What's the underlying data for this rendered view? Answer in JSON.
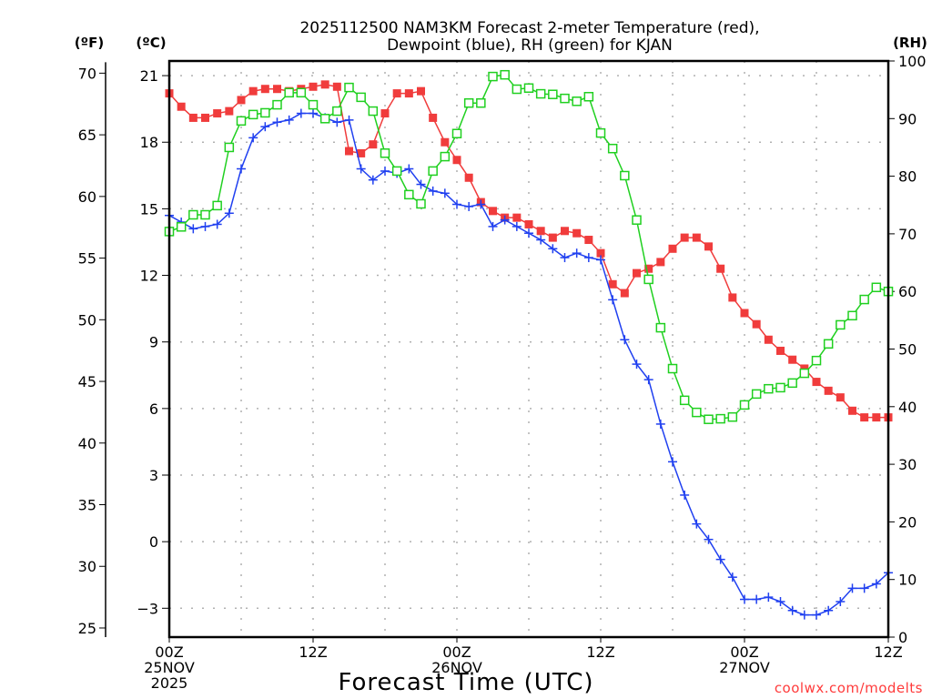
{
  "chart_data": {
    "type": "line",
    "title": "2025112500 NAM3KM Forecast 2-meter Temperature (red),",
    "subtitle": "Dewpoint (blue), RH (green) for KJAN",
    "xlabel": "Forecast Time (UTC)",
    "ylabel_left_outer": "(ºF)",
    "ylabel_left_inner": "(ºC)",
    "ylabel_right": "(RH)",
    "credit": "coolwx.com/modelts",
    "x_unit": "forecast hour",
    "xlim": [
      0,
      60
    ],
    "ylim_celsius": [
      -4.3,
      21.66
    ],
    "ylim_rh": [
      0,
      100
    ],
    "grid": true,
    "x_ticks": [
      {
        "hour": 0,
        "lines": [
          "00Z",
          "25NOV",
          "2025"
        ]
      },
      {
        "hour": 12,
        "lines": [
          "12Z"
        ]
      },
      {
        "hour": 24,
        "lines": [
          "00Z",
          "26NOV"
        ]
      },
      {
        "hour": 36,
        "lines": [
          "12Z"
        ]
      },
      {
        "hour": 48,
        "lines": [
          "00Z",
          "27NOV"
        ]
      },
      {
        "hour": 60,
        "lines": [
          "12Z"
        ]
      }
    ],
    "celsius_ticks": [
      "21",
      "18",
      "15",
      "12",
      "9",
      "6",
      "3",
      "0",
      "-3"
    ],
    "fahrenheit_ticks": [
      "70",
      "65",
      "60",
      "55",
      "50",
      "45",
      "40",
      "35",
      "30",
      "25"
    ],
    "rh_ticks": [
      "100",
      "90",
      "80",
      "70",
      "60",
      "50",
      "40",
      "30",
      "20",
      "10",
      "0"
    ],
    "x": [
      0,
      1,
      2,
      3,
      4,
      5,
      6,
      7,
      8,
      9,
      10,
      11,
      12,
      13,
      14,
      15,
      16,
      17,
      18,
      19,
      20,
      21,
      22,
      23,
      24,
      25,
      26,
      27,
      28,
      29,
      30,
      31,
      32,
      33,
      34,
      35,
      36,
      37,
      38,
      39,
      40,
      41,
      42,
      43,
      44,
      45,
      46,
      47,
      48,
      49,
      50,
      51,
      52,
      53,
      54,
      55,
      56,
      57,
      58,
      59,
      60
    ],
    "series": [
      {
        "name": "2-meter Temperature",
        "axis": "celsius",
        "color": "#f03c3c",
        "marker": "filled-square",
        "values": [
          20.2,
          19.6,
          19.1,
          19.1,
          19.3,
          19.4,
          19.9,
          20.3,
          20.4,
          20.4,
          20.3,
          20.4,
          20.5,
          20.6,
          20.5,
          17.6,
          17.5,
          17.9,
          19.3,
          20.2,
          20.2,
          20.3,
          19.1,
          18.0,
          17.2,
          16.4,
          15.3,
          14.9,
          14.6,
          14.6,
          14.3,
          14.0,
          13.7,
          14.0,
          13.9,
          13.6,
          13.0,
          11.6,
          11.2,
          12.1,
          12.3,
          12.6,
          13.2,
          13.7,
          13.7,
          13.3,
          12.3,
          11.0,
          10.3,
          9.8,
          9.1,
          8.6,
          8.2,
          7.8,
          7.2,
          6.8,
          6.5,
          5.9,
          5.6,
          5.6,
          5.6
        ]
      },
      {
        "name": "Dewpoint",
        "axis": "celsius",
        "color": "#2040f0",
        "marker": "plus",
        "values": [
          14.7,
          14.4,
          14.1,
          14.2,
          14.3,
          14.8,
          16.8,
          18.2,
          18.7,
          18.9,
          19.0,
          19.3,
          19.3,
          19.1,
          18.9,
          19.0,
          16.8,
          16.3,
          16.7,
          16.6,
          16.8,
          16.1,
          15.8,
          15.7,
          15.2,
          15.1,
          15.2,
          14.2,
          14.5,
          14.2,
          13.9,
          13.6,
          13.2,
          12.8,
          13.0,
          12.8,
          12.7,
          10.9,
          9.1,
          8.0,
          7.3,
          5.3,
          3.6,
          2.1,
          0.8,
          0.1,
          -0.8,
          -1.6,
          -2.6,
          -2.6,
          -2.5,
          -2.7,
          -3.1,
          -3.3,
          -3.3,
          -3.1,
          -2.7,
          -2.1,
          -2.1,
          -1.9,
          -1.4
        ]
      },
      {
        "name": "RH",
        "axis": "rh",
        "color": "#20d020",
        "marker": "open-square",
        "values": [
          70.4,
          71.2,
          73.3,
          73.3,
          74.9,
          85.0,
          89.6,
          90.7,
          91.0,
          92.4,
          94.5,
          94.5,
          92.4,
          90.0,
          91.3,
          95.4,
          93.7,
          91.3,
          84.0,
          80.9,
          76.8,
          75.2,
          80.9,
          83.4,
          87.4,
          92.7,
          92.7,
          97.3,
          97.6,
          95.1,
          95.3,
          94.3,
          94.2,
          93.5,
          93.0,
          93.8,
          87.5,
          84.8,
          80.1,
          72.4,
          62.1,
          53.7,
          46.6,
          41.1,
          39.0,
          37.8,
          37.9,
          38.2,
          40.3,
          42.2,
          43.1,
          43.3,
          44.1,
          45.8,
          48.0,
          50.9,
          54.2,
          55.8,
          58.6,
          60.7,
          60.0
        ]
      }
    ]
  }
}
